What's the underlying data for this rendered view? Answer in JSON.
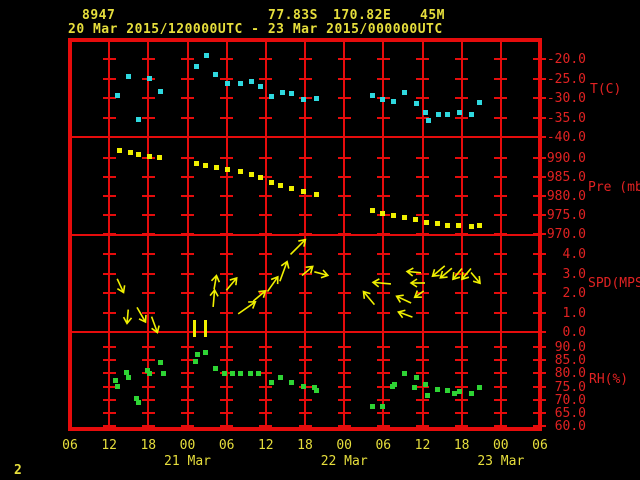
{
  "header": {
    "station_id": "8947",
    "latitude": "77.83S",
    "longitude": "170.82E",
    "elevation": "45M",
    "period": "20 Mar 2015/120000UTC - 23 Mar 2015/000000UTC"
  },
  "footer": {
    "frame_number": "2"
  },
  "colors": {
    "background": "#000000",
    "grid": "#e60c0c",
    "axis_text": "#e12222",
    "time_text": "#e6de3c",
    "temp_points": "#2fd9df",
    "pressure_points": "#f0f000",
    "wind_arrows": "#f0f000",
    "rh_points": "#2ed434"
  },
  "chart_data": {
    "type": "scatter",
    "title": "8947  77.83S 170.82E 45M  20 Mar 2015/120000UTC - 23 Mar 2015/000000UTC",
    "x_axis": {
      "hours_span": 72,
      "tick_interval_hours": 6,
      "tick_labels": [
        "06",
        "12",
        "18",
        "00",
        "06",
        "12",
        "18",
        "00",
        "06",
        "12",
        "18",
        "00",
        "06"
      ],
      "date_labels": [
        {
          "label": "21 Mar",
          "tick_index": 3
        },
        {
          "label": "22 Mar",
          "tick_index": 7
        },
        {
          "label": "23 Mar",
          "tick_index": 11
        }
      ]
    },
    "panels": [
      {
        "id": "temp",
        "unit_label": "T(C)",
        "marker": "square",
        "tick_values": [
          -20,
          -25,
          -30,
          -35,
          -40
        ],
        "points": [
          [
            7.3,
            -29.2
          ],
          [
            9.0,
            -24.3
          ],
          [
            10.5,
            -35.4
          ],
          [
            12.1,
            -24.8
          ],
          [
            13.9,
            -28.2
          ],
          [
            19.4,
            -21.7
          ],
          [
            20.9,
            -19.1
          ],
          [
            22.3,
            -24.0
          ],
          [
            24.1,
            -26.1
          ],
          [
            26.1,
            -26.3
          ],
          [
            27.8,
            -25.8
          ],
          [
            29.1,
            -26.9
          ],
          [
            30.8,
            -29.5
          ],
          [
            32.5,
            -28.4
          ],
          [
            33.9,
            -28.7
          ],
          [
            35.8,
            -30.2
          ],
          [
            37.7,
            -30.0
          ],
          [
            46.4,
            -29.2
          ],
          [
            47.9,
            -30.2
          ],
          [
            49.6,
            -30.8
          ],
          [
            51.3,
            -28.4
          ],
          [
            53.1,
            -31.3
          ],
          [
            54.5,
            -33.6
          ],
          [
            54.9,
            -35.7
          ],
          [
            56.4,
            -34.1
          ],
          [
            57.8,
            -34.1
          ],
          [
            59.6,
            -33.6
          ],
          [
            61.5,
            -34.1
          ],
          [
            62.7,
            -31.0
          ]
        ]
      },
      {
        "id": "pressure",
        "unit_label": "Pre (mb)",
        "marker": "square",
        "tick_values": [
          990,
          985,
          980,
          975,
          970
        ],
        "points": [
          [
            7.5,
            991.8
          ],
          [
            9.2,
            991.3
          ],
          [
            10.5,
            990.8
          ],
          [
            12.1,
            990.3
          ],
          [
            13.7,
            990.0
          ],
          [
            19.4,
            988.4
          ],
          [
            20.7,
            987.9
          ],
          [
            22.4,
            987.4
          ],
          [
            24.1,
            986.9
          ],
          [
            26.1,
            986.4
          ],
          [
            27.8,
            985.6
          ],
          [
            29.1,
            984.8
          ],
          [
            30.8,
            983.5
          ],
          [
            32.3,
            982.7
          ],
          [
            33.9,
            981.9
          ],
          [
            35.8,
            981.1
          ],
          [
            37.7,
            980.3
          ],
          [
            46.4,
            976.2
          ],
          [
            47.9,
            975.4
          ],
          [
            49.6,
            974.9
          ],
          [
            51.3,
            974.4
          ],
          [
            52.9,
            973.9
          ],
          [
            54.6,
            973.1
          ],
          [
            56.3,
            972.8
          ],
          [
            57.8,
            972.3
          ],
          [
            59.5,
            972.3
          ],
          [
            61.5,
            972.0
          ],
          [
            62.7,
            972.3
          ]
        ]
      },
      {
        "id": "wind",
        "unit_label": "SPD(MPS)",
        "marker": "arrow",
        "tick_values": [
          4,
          3,
          2,
          1,
          0
        ],
        "arrows": [
          [
            7.8,
            2.3,
            65,
            14
          ],
          [
            8.8,
            0.7,
            95,
            13
          ],
          [
            11.0,
            0.8,
            60,
            16
          ],
          [
            13.0,
            0.3,
            70,
            16
          ],
          [
            22.0,
            1.8,
            275,
            16
          ],
          [
            22.3,
            2.6,
            280,
            13
          ],
          [
            24.9,
            2.5,
            310,
            15
          ],
          [
            27.3,
            1.3,
            325,
            20
          ],
          [
            29.1,
            1.9,
            320,
            15
          ],
          [
            31.1,
            2.5,
            305,
            17
          ],
          [
            32.8,
            3.2,
            290,
            20
          ],
          [
            35.1,
            4.4,
            315,
            20
          ],
          [
            36.6,
            3.2,
            320,
            13
          ],
          [
            38.6,
            3.0,
            15,
            13
          ],
          [
            45.7,
            1.8,
            230,
            16
          ],
          [
            47.5,
            2.5,
            185,
            17
          ],
          [
            51.0,
            1.7,
            205,
            15
          ],
          [
            51.1,
            0.9,
            200,
            14
          ],
          [
            52.5,
            3.1,
            185,
            13
          ],
          [
            53.0,
            2.5,
            180,
            13
          ],
          [
            53.3,
            1.9,
            145,
            10
          ],
          [
            56.3,
            3.1,
            140,
            15
          ],
          [
            57.5,
            3.0,
            140,
            14
          ],
          [
            59.2,
            2.9,
            130,
            13
          ],
          [
            60.6,
            2.9,
            130,
            13
          ],
          [
            62.2,
            2.7,
            50,
            13
          ]
        ],
        "calm_marker_hours": [
          19.0,
          20.8
        ]
      },
      {
        "id": "rh",
        "unit_label": "RH(%)",
        "marker": "square",
        "tick_values": [
          90,
          85,
          80,
          75,
          70,
          65,
          60
        ],
        "points": [
          [
            7.0,
            77.5
          ],
          [
            7.3,
            75.0
          ],
          [
            8.7,
            80.5
          ],
          [
            9.0,
            78.5
          ],
          [
            10.2,
            70.5
          ],
          [
            10.5,
            69.0
          ],
          [
            11.9,
            81.0
          ],
          [
            12.1,
            80.0
          ],
          [
            13.9,
            84.0
          ],
          [
            14.3,
            80.0
          ],
          [
            19.2,
            84.5
          ],
          [
            19.5,
            87.0
          ],
          [
            20.7,
            88.0
          ],
          [
            22.3,
            82.0
          ],
          [
            23.6,
            80.0
          ],
          [
            24.9,
            80.0
          ],
          [
            26.1,
            80.0
          ],
          [
            27.6,
            80.0
          ],
          [
            28.8,
            80.0
          ],
          [
            30.8,
            76.5
          ],
          [
            32.3,
            78.5
          ],
          [
            34.0,
            76.5
          ],
          [
            35.7,
            75.0
          ],
          [
            37.4,
            74.5
          ],
          [
            37.7,
            73.5
          ],
          [
            46.4,
            67.5
          ],
          [
            47.8,
            67.5
          ],
          [
            49.4,
            75.0
          ],
          [
            49.7,
            76.0
          ],
          [
            51.3,
            80.0
          ],
          [
            52.8,
            74.5
          ],
          [
            53.0,
            78.5
          ],
          [
            54.5,
            76.0
          ],
          [
            54.7,
            71.5
          ],
          [
            56.3,
            74.0
          ],
          [
            57.8,
            73.5
          ],
          [
            58.9,
            72.5
          ],
          [
            59.7,
            73.0
          ],
          [
            61.5,
            72.5
          ],
          [
            62.7,
            74.5
          ]
        ]
      }
    ]
  }
}
